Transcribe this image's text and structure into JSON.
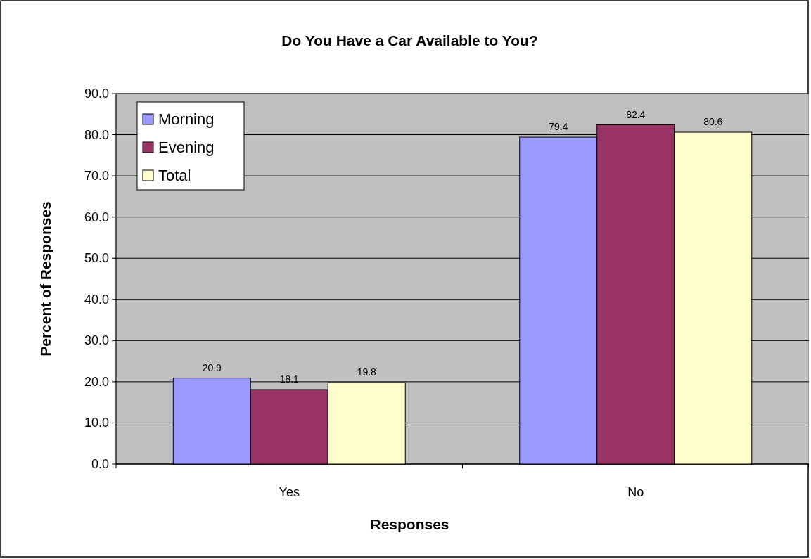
{
  "chart_data": {
    "type": "bar",
    "title": "Do You Have a Car Available to You?",
    "xlabel": "Responses",
    "ylabel": "Percent of Responses",
    "categories": [
      "Yes",
      "No"
    ],
    "series": [
      {
        "name": "Morning",
        "color": "#9999ff",
        "values": [
          20.9,
          79.4
        ]
      },
      {
        "name": "Evening",
        "color": "#993366",
        "values": [
          18.1,
          82.4
        ]
      },
      {
        "name": "Total",
        "color": "#ffffcc",
        "values": [
          19.8,
          80.6
        ]
      }
    ],
    "ylim": [
      0,
      90
    ],
    "yticks": [
      {
        "value": 0,
        "label": "0.0"
      },
      {
        "value": 10,
        "label": "10.0"
      },
      {
        "value": 20,
        "label": "20.0"
      },
      {
        "value": 30,
        "label": "30.0"
      },
      {
        "value": 40,
        "label": "40.0"
      },
      {
        "value": 50,
        "label": "50.0"
      },
      {
        "value": 60,
        "label": "60.0"
      },
      {
        "value": 70,
        "label": "70.0"
      },
      {
        "value": 80,
        "label": "80.0"
      },
      {
        "value": 90,
        "label": "90.0"
      }
    ],
    "grid": "y",
    "legend": "top left",
    "data_labels": true
  }
}
